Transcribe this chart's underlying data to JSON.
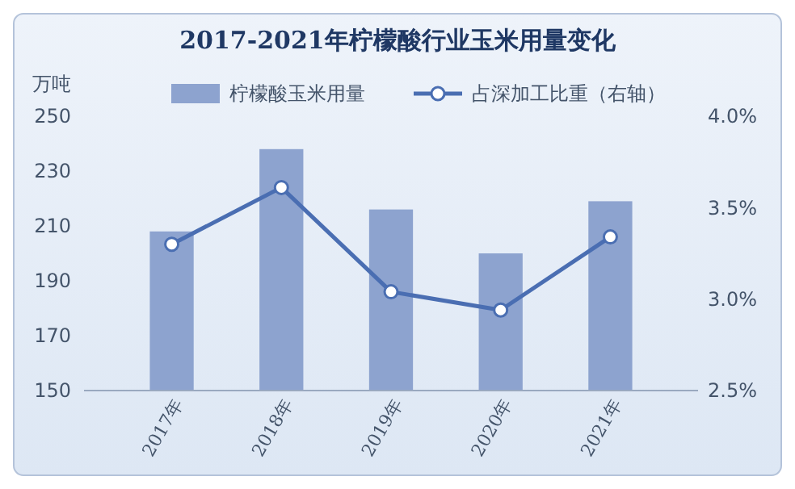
{
  "chart_data": {
    "type": "bar",
    "title": "2017-2021年柠檬酸行业玉米用量变化",
    "ylabel": "万吨",
    "categories": [
      "2017年",
      "2018年",
      "2019年",
      "2020年",
      "2021年"
    ],
    "series": [
      {
        "name": "柠檬酸玉米用量",
        "color": "#8da3cf",
        "values": [
          208,
          238,
          216,
          200,
          219
        ]
      },
      {
        "name": "占深加工比重（右轴）",
        "type": "line",
        "axis": "y2",
        "color": "#4a6eb2",
        "values": [
          3.3,
          3.61,
          3.04,
          2.94,
          3.34
        ]
      }
    ],
    "ylim": [
      150,
      250
    ],
    "yticks": [
      150,
      170,
      190,
      210,
      230,
      250
    ],
    "y2lim": [
      2.5,
      4.0
    ],
    "y2ticks": [
      {
        "value": 2.5,
        "label": "2.5%"
      },
      {
        "value": 3.0,
        "label": "3.0%"
      },
      {
        "value": 3.5,
        "label": "3.5%"
      },
      {
        "value": 4.0,
        "label": "4.0%"
      }
    ],
    "marker": "circle",
    "legend": "top",
    "grid": false
  }
}
